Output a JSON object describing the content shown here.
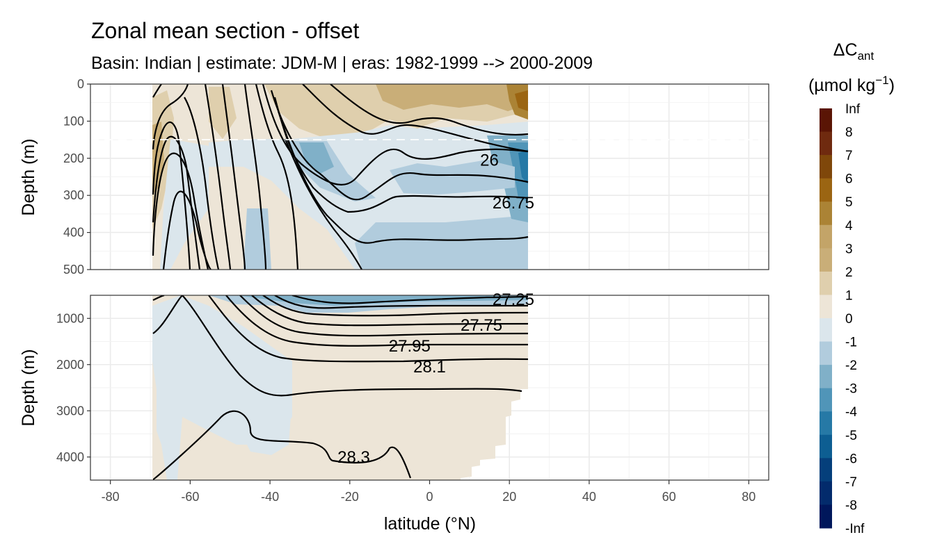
{
  "colors": {
    "pos_1": "#ede5d7",
    "pos_2": "#dfcfad",
    "pos_3": "#c9ae78",
    "pos_4": "#c3a468",
    "pos_5": "#ab8335",
    "pos_6": "#9b6512",
    "pos_7": "#7f470a",
    "pos_8": "#6f2a0f",
    "pos_inf": "#5a1505",
    "neg_0": "#dbe6ec",
    "neg_1": "#b1ccdd",
    "neg_2": "#80b0c8",
    "neg_3": "#5095b8",
    "neg_4": "#2679a6",
    "neg_5": "#0d5e92",
    "neg_6": "#053f7b",
    "neg_7": "#032b6c",
    "neg_8": "#00175b"
  },
  "chart_data": {
    "type": "heatmap",
    "title": "Zonal mean section - offset",
    "subtitle": "Basin: Indian | estimate: JDM-M | eras: 1982-1999 --> 2000-2009",
    "xlabel": "latitude (°N)",
    "ylabel": "Depth (m)",
    "xlim": [
      -85,
      85
    ],
    "x_ticks": [
      "-80",
      "-60",
      "-40",
      "-20",
      "0",
      "20",
      "40",
      "60",
      "80"
    ],
    "data_extent_lat": [
      -70,
      24.5
    ],
    "grid": true,
    "panels": [
      {
        "name": "upper",
        "ylim": [
          0,
          500
        ],
        "y_reversed": true,
        "y_ticks": [
          "0",
          "100",
          "200",
          "300",
          "400",
          "500"
        ],
        "mixed_layer_line_depth": 150
      },
      {
        "name": "lower",
        "ylim": [
          500,
          4500
        ],
        "y_reversed": true,
        "y_ticks": [
          "1000",
          "2000",
          "3000",
          "4000"
        ]
      }
    ],
    "isopycnal_labels": [
      {
        "text": "26",
        "lat": 15,
        "depth": 205
      },
      {
        "text": "26.75",
        "lat": 21,
        "depth": 320
      },
      {
        "text": "27.25",
        "lat": 21,
        "depth": 590
      },
      {
        "text": "27.75",
        "lat": 13,
        "depth": 1150
      },
      {
        "text": "27.95",
        "lat": -5,
        "depth": 1600
      },
      {
        "text": "28.1",
        "lat": 0,
        "depth": 2050
      },
      {
        "text": "28.3",
        "lat": -19,
        "depth": 4000
      }
    ],
    "legend": {
      "position": "right",
      "title_main": "ΔC",
      "title_sub": "ant",
      "unit_main": "(µmol kg",
      "unit_sup": "−1",
      "unit_close": ")",
      "labels": [
        "Inf",
        "8",
        "7",
        "6",
        "5",
        "4",
        "3",
        "2",
        "1",
        "0",
        "-1",
        "-2",
        "-3",
        "-4",
        "-5",
        "-6",
        "-7",
        "-8",
        "-Inf"
      ],
      "bins": [
        "8 to Inf",
        "7 to 8",
        "6 to 7",
        "5 to 6",
        "4 to 5",
        "3 to 4",
        "2 to 3",
        "1 to 2",
        "0 to 1",
        "-1 to 0",
        "-2 to -1",
        "-3 to -2",
        "-4 to -3",
        "-5 to -4",
        "-6 to -5",
        "-7 to -6",
        "-8 to -7",
        "-Inf to -8"
      ]
    }
  }
}
